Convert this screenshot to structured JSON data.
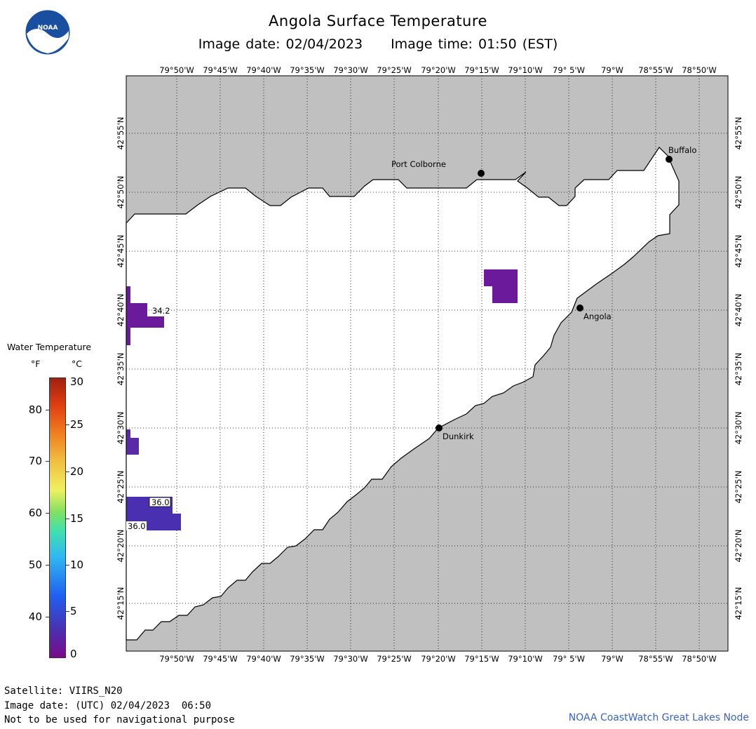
{
  "header": {
    "title": "Angola Surface Temperature",
    "image_date": "Image date: 02/04/2023",
    "image_time": "Image time: 01:50 (EST)"
  },
  "logo": {
    "icon": "noaa-logo-icon",
    "text": "NOAA",
    "color": "#1a4fa0"
  },
  "map": {
    "lon_ticks": [
      "79°50'W",
      "79°45'W",
      "79°40'W",
      "79°35'W",
      "79°30'W",
      "79°25'W",
      "79°20'W",
      "79°15'W",
      "79°10'W",
      "79° 5'W",
      "79°W",
      "78°55'W",
      "78°50'W"
    ],
    "lat_ticks": [
      "42°55'N",
      "42°50'N",
      "42°45'N",
      "42°40'N",
      "42°35'N",
      "42°30'N",
      "42°25'N",
      "42°20'N",
      "42°15'N"
    ],
    "land_color": "#c0c0c0",
    "water_color": "#ffffff",
    "cities": [
      {
        "name": "Port Colborne"
      },
      {
        "name": "Buffalo"
      },
      {
        "name": "Angola"
      },
      {
        "name": "Dunkirk"
      }
    ],
    "temperature_labels": [
      "34.2",
      "36.0",
      "36.0"
    ]
  },
  "legend": {
    "title": "Water Temperature",
    "unit_f": "°F",
    "unit_c": "°C",
    "f_labels": [
      "80",
      "70",
      "60",
      "50",
      "40"
    ],
    "c_labels": [
      "30",
      "25",
      "20",
      "15",
      "10",
      "5",
      "0"
    ]
  },
  "footer": {
    "satellite": "Satellite: VIIRS_N20",
    "utc_date": "Image date: (UTC) 02/04/2023  06:50",
    "disclaimer": "Not to be used for navigational purpose",
    "credit": "NOAA CoastWatch Great Lakes Node"
  }
}
